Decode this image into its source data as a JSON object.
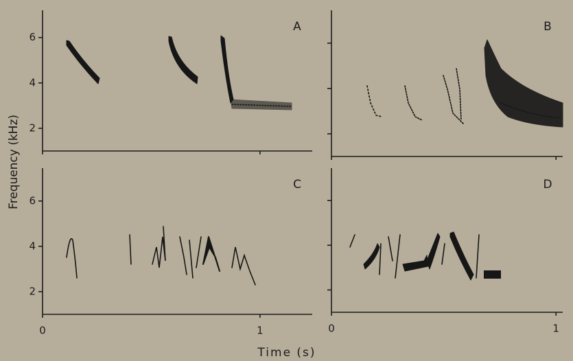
{
  "ylabel": "Frequency (kHz)",
  "xlabel": "Time (s)",
  "chart_data": [
    {
      "type": "spectrogram",
      "label": "A",
      "xlim": [
        0,
        1.24
      ],
      "xticks": [
        0,
        1
      ],
      "ylim": [
        1,
        7.2
      ],
      "yticks": [
        2,
        4,
        6
      ]
    },
    {
      "type": "spectrogram",
      "label": "B",
      "xlim": [
        0,
        1.03
      ],
      "xticks": [
        0,
        1
      ],
      "ylim": [
        1,
        7.45
      ],
      "yticks": [
        2,
        4,
        6
      ]
    },
    {
      "type": "spectrogram",
      "label": "C",
      "xlim": [
        0,
        1.24
      ],
      "xticks": [
        0,
        1
      ],
      "ylim": [
        1,
        7.45
      ],
      "yticks": [
        2,
        4,
        6
      ]
    },
    {
      "type": "spectrogram",
      "label": "D",
      "xlim": [
        0,
        1.03
      ],
      "xticks": [
        0,
        1
      ],
      "ylim": [
        1,
        7.45
      ],
      "yticks": [
        2,
        4,
        6
      ]
    }
  ]
}
